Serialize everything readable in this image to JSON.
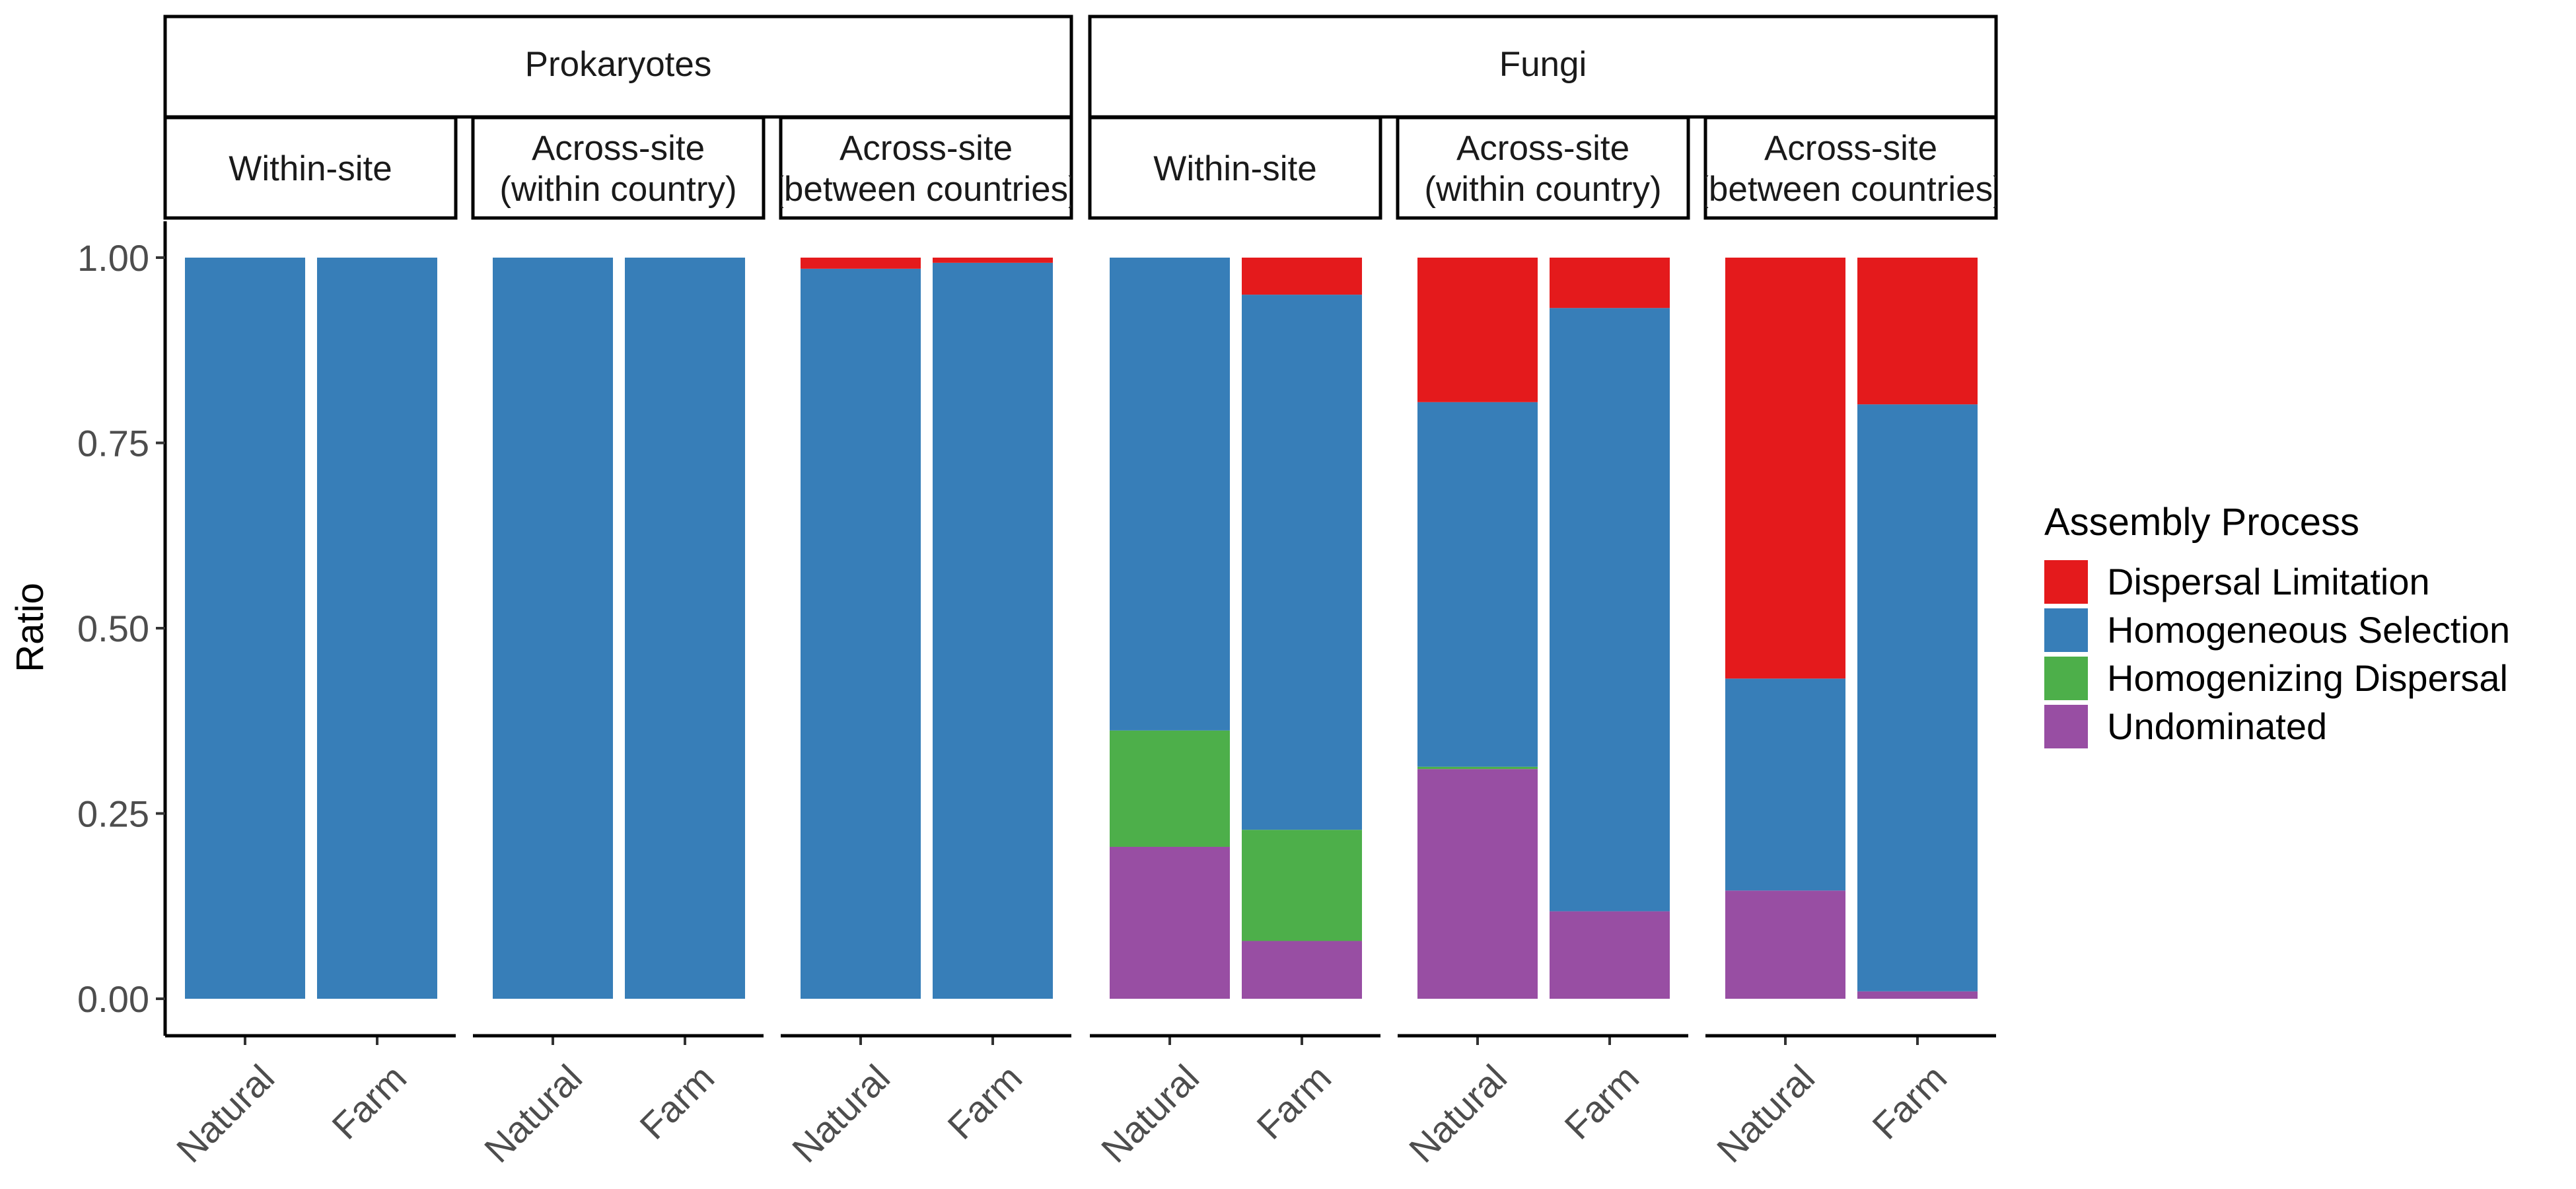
{
  "chart_data": {
    "type": "bar",
    "stacked": true,
    "ylabel": "Ratio",
    "ylim": [
      0,
      1
    ],
    "yticks": [
      "0.00",
      "0.25",
      "0.50",
      "0.75",
      "1.00"
    ],
    "ytick_values": [
      0,
      0.25,
      0.5,
      0.75,
      1.0
    ],
    "categories": [
      "Natural",
      "Farm"
    ],
    "groups": [
      {
        "name": "Prokaryotes",
        "panels": [
          {
            "label_lines": [
              "Within-site"
            ],
            "bars": [
              {
                "category": "Natural",
                "values": {
                  "Dispersal Limitation": 0,
                  "Homogeneous Selection": 1.0,
                  "Homogenizing Dispersal": 0,
                  "Undominated": 0
                }
              },
              {
                "category": "Farm",
                "values": {
                  "Dispersal Limitation": 0,
                  "Homogeneous Selection": 1.0,
                  "Homogenizing Dispersal": 0,
                  "Undominated": 0
                }
              }
            ]
          },
          {
            "label_lines": [
              "Across-site",
              "(within country)"
            ],
            "bars": [
              {
                "category": "Natural",
                "values": {
                  "Dispersal Limitation": 0,
                  "Homogeneous Selection": 1.0,
                  "Homogenizing Dispersal": 0,
                  "Undominated": 0
                }
              },
              {
                "category": "Farm",
                "values": {
                  "Dispersal Limitation": 0,
                  "Homogeneous Selection": 1.0,
                  "Homogenizing Dispersal": 0,
                  "Undominated": 0
                }
              }
            ]
          },
          {
            "label_lines": [
              "Across-site",
              "(between countries)"
            ],
            "bars": [
              {
                "category": "Natural",
                "values": {
                  "Dispersal Limitation": 0.015,
                  "Homogeneous Selection": 0.985,
                  "Homogenizing Dispersal": 0,
                  "Undominated": 0
                }
              },
              {
                "category": "Farm",
                "values": {
                  "Dispersal Limitation": 0.007,
                  "Homogeneous Selection": 0.993,
                  "Homogenizing Dispersal": 0,
                  "Undominated": 0
                }
              }
            ]
          }
        ]
      },
      {
        "name": "Fungi",
        "panels": [
          {
            "label_lines": [
              "Within-site"
            ],
            "bars": [
              {
                "category": "Natural",
                "values": {
                  "Dispersal Limitation": 0,
                  "Homogeneous Selection": 0.638,
                  "Homogenizing Dispersal": 0.157,
                  "Undominated": 0.205
                }
              },
              {
                "category": "Farm",
                "values": {
                  "Dispersal Limitation": 0.05,
                  "Homogeneous Selection": 0.722,
                  "Homogenizing Dispersal": 0.15,
                  "Undominated": 0.078
                }
              }
            ]
          },
          {
            "label_lines": [
              "Across-site",
              "(within country)"
            ],
            "bars": [
              {
                "category": "Natural",
                "values": {
                  "Dispersal Limitation": 0.195,
                  "Homogeneous Selection": 0.492,
                  "Homogenizing Dispersal": 0.003,
                  "Undominated": 0.31
                }
              },
              {
                "category": "Farm",
                "values": {
                  "Dispersal Limitation": 0.068,
                  "Homogeneous Selection": 0.814,
                  "Homogenizing Dispersal": 0,
                  "Undominated": 0.118
                }
              }
            ]
          },
          {
            "label_lines": [
              "Across-site",
              "(between countries)"
            ],
            "bars": [
              {
                "category": "Natural",
                "values": {
                  "Dispersal Limitation": 0.568,
                  "Homogeneous Selection": 0.286,
                  "Homogenizing Dispersal": 0,
                  "Undominated": 0.146
                }
              },
              {
                "category": "Farm",
                "values": {
                  "Dispersal Limitation": 0.198,
                  "Homogeneous Selection": 0.792,
                  "Homogenizing Dispersal": 0,
                  "Undominated": 0.01
                }
              }
            ]
          }
        ]
      }
    ],
    "legend": {
      "title": "Assembly Process",
      "position": "right",
      "entries": [
        {
          "name": "Dispersal Limitation",
          "color": "#e41a1c"
        },
        {
          "name": "Homogeneous Selection",
          "color": "#377eb8"
        },
        {
          "name": "Homogenizing Dispersal",
          "color": "#4daf4a"
        },
        {
          "name": "Undominated",
          "color": "#984ea3"
        }
      ]
    },
    "stack_order_bottom_to_top": [
      "Undominated",
      "Homogenizing Dispersal",
      "Homogeneous Selection",
      "Dispersal Limitation"
    ],
    "grid": false
  }
}
